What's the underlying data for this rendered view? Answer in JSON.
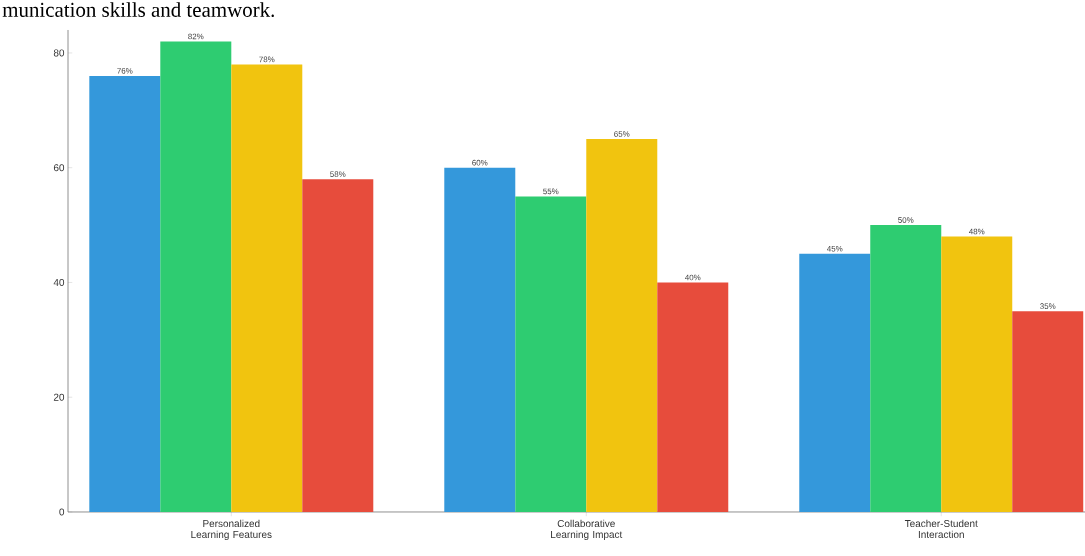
{
  "chart_data": {
    "type": "bar",
    "annotations": [
      "munication skills and teamwork."
    ],
    "categories": [
      "Personalized Learning Features",
      "Collaborative Learning Impact",
      "Teacher-Student Interaction"
    ],
    "series": [
      {
        "color": "#3498db",
        "values": [
          76,
          60,
          45
        ],
        "value_labels": [
          "76%",
          "60%",
          "45%"
        ]
      },
      {
        "color": "#2ecc71",
        "values": [
          82,
          55,
          50
        ],
        "value_labels": [
          "82%",
          "55%",
          "50%"
        ]
      },
      {
        "color": "#f1c40f",
        "values": [
          78,
          65,
          48
        ],
        "value_labels": [
          "78%",
          "65%",
          "48%"
        ]
      },
      {
        "color": "#e74c3c",
        "values": [
          58,
          40,
          35
        ],
        "value_labels": [
          "58%",
          "40%",
          "35%"
        ]
      }
    ],
    "ylim": [
      0,
      84
    ],
    "yticks": [
      0,
      20,
      40,
      60,
      80
    ]
  }
}
